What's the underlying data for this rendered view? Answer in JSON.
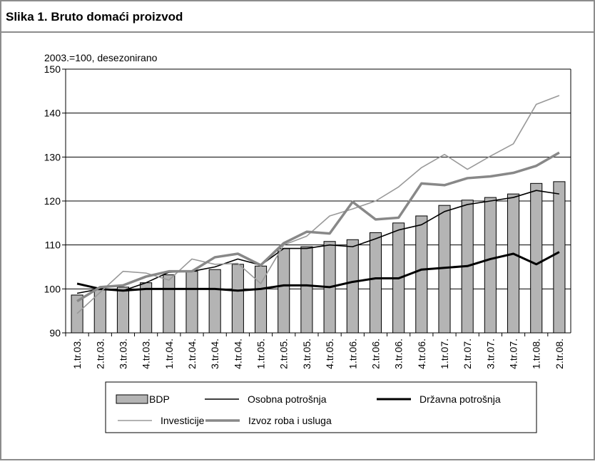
{
  "chart_data": {
    "type": "bar-line",
    "title": "Slika 1. Bruto domaći proizvod",
    "subtitle": "2003.=100, desezonirano",
    "categories": [
      "1.tr.03.",
      "2.tr.03.",
      "3.tr.03.",
      "4.tr.03.",
      "1.tr.04.",
      "2.tr.04.",
      "3.tr.04.",
      "4.tr.04.",
      "1.tr.05.",
      "2.tr.05.",
      "3.tr.05.",
      "4.tr.05.",
      "1.tr.06.",
      "2.tr.06.",
      "3.tr.06.",
      "4.tr.06.",
      "1.tr.07.",
      "2.tr.07.",
      "3.tr.07.",
      "4.tr.07.",
      "1.tr.08.",
      "2.tr.08."
    ],
    "series": [
      {
        "name": "BDP",
        "kind": "bar",
        "color": "#b4b4b4",
        "values": [
          98.6,
          99.8,
          100.4,
          101.4,
          103.2,
          104.0,
          104.4,
          105.6,
          105.2,
          109.2,
          109.6,
          110.8,
          111.2,
          112.8,
          115.0,
          116.6,
          119.0,
          120.2,
          120.8,
          121.6,
          124.0,
          124.4
        ]
      },
      {
        "name": "Osobna potrošnja",
        "kind": "line",
        "color": "#000000",
        "width": 1.6,
        "values": [
          99.0,
          100.0,
          99.6,
          101.4,
          103.8,
          104.0,
          105.0,
          106.8,
          105.4,
          109.2,
          109.2,
          110.0,
          109.6,
          111.4,
          113.4,
          114.6,
          117.6,
          119.2,
          120.0,
          120.8,
          122.4,
          121.6
        ]
      },
      {
        "name": "Državna potrošnja",
        "kind": "line",
        "color": "#000000",
        "width": 3,
        "values": [
          101.2,
          100.0,
          99.6,
          100.0,
          100.0,
          100.0,
          100.0,
          99.6,
          100.0,
          100.8,
          100.8,
          100.4,
          101.6,
          102.4,
          102.4,
          104.4,
          104.8,
          105.2,
          106.8,
          108.0,
          105.6,
          108.4
        ]
      },
      {
        "name": "Investicije",
        "kind": "line",
        "color": "#999999",
        "width": 1.6,
        "values": [
          94.4,
          99.2,
          104.0,
          103.6,
          102.0,
          106.8,
          105.6,
          105.8,
          101.2,
          110.0,
          112.0,
          116.6,
          118.2,
          120.0,
          123.2,
          127.6,
          130.6,
          127.2,
          130.2,
          133.0,
          142.0,
          144.0
        ]
      },
      {
        "name": "Izvoz roba i usluga",
        "kind": "line",
        "color": "#888888",
        "width": 3.5,
        "values": [
          97.2,
          100.4,
          100.8,
          102.8,
          104.0,
          104.0,
          107.2,
          108.0,
          105.4,
          110.4,
          113.0,
          112.6,
          119.8,
          115.8,
          116.2,
          124.0,
          123.6,
          125.2,
          125.6,
          126.4,
          128.0,
          131.0
        ]
      }
    ],
    "ylim": [
      90,
      150
    ],
    "yticks": [
      90,
      100,
      110,
      120,
      130,
      140,
      150
    ],
    "grid": true,
    "legend": "bottom"
  }
}
